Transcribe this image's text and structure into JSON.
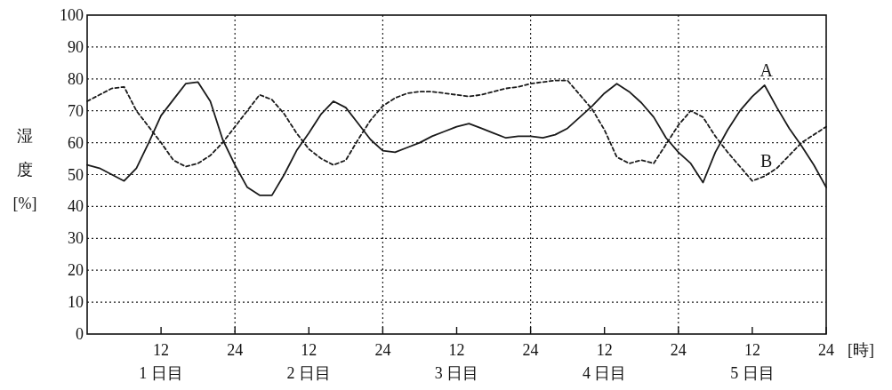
{
  "chart_data": {
    "type": "line",
    "ylabel": "湿度 [%]",
    "xlabel": "[時]",
    "ylim": [
      0,
      100
    ],
    "yticks": [
      0,
      10,
      20,
      30,
      40,
      50,
      60,
      70,
      80,
      90,
      100
    ],
    "categories": [
      null,
      null,
      null,
      null,
      null,
      null,
      "12\n1 日目",
      null,
      null,
      null,
      null,
      null,
      "24",
      null,
      null,
      null,
      null,
      null,
      "12\n2 日目",
      null,
      null,
      null,
      null,
      null,
      "24",
      null,
      null,
      null,
      null,
      null,
      "12\n3 日目",
      null,
      null,
      null,
      null,
      null,
      "24",
      null,
      null,
      null,
      null,
      null,
      "12\n4 日目",
      null,
      null,
      null,
      null,
      null,
      "24",
      null,
      null,
      null,
      null,
      null,
      "12\n5 日目",
      null,
      null,
      null,
      null,
      null,
      "24"
    ],
    "grid": true,
    "series": [
      {
        "name": "A",
        "color": "#1a1a1a",
        "line_style": "solid",
        "values": [
          53,
          52,
          50,
          48,
          52,
          60,
          68.5,
          73.5,
          78.5,
          79,
          73,
          61,
          53,
          46,
          43.5,
          43.5,
          50,
          57.5,
          63,
          69,
          73,
          71,
          66,
          61,
          57.5,
          57,
          58.5,
          60,
          62,
          63.5,
          65,
          66,
          64.5,
          63,
          61.5,
          62,
          62,
          61.5,
          62.5,
          64.5,
          68,
          71.5,
          75.5,
          78.5,
          76,
          72.5,
          68,
          61.5,
          57,
          53.5,
          47.5,
          57,
          64,
          70,
          74.5,
          78,
          71,
          64.5,
          59,
          53,
          46
        ]
      },
      {
        "name": "B",
        "color": "#1a1a1a",
        "line_style": "dashed",
        "values": [
          73,
          75,
          77,
          77.5,
          70,
          65,
          60,
          54.5,
          52.5,
          53.5,
          56,
          60,
          65,
          70,
          75,
          73.5,
          69,
          63,
          58,
          55,
          53,
          54.5,
          61,
          67,
          71.5,
          74,
          75.5,
          76,
          76,
          75.5,
          75,
          74.5,
          75,
          76,
          77,
          77.5,
          78.5,
          79,
          79.5,
          79.5,
          75,
          70.5,
          64,
          55.5,
          53.5,
          54.5,
          53.5,
          59.5,
          65.5,
          70,
          68,
          62,
          57,
          52.5,
          48,
          49.5,
          52,
          56,
          60,
          62.5,
          65
        ]
      }
    ]
  }
}
